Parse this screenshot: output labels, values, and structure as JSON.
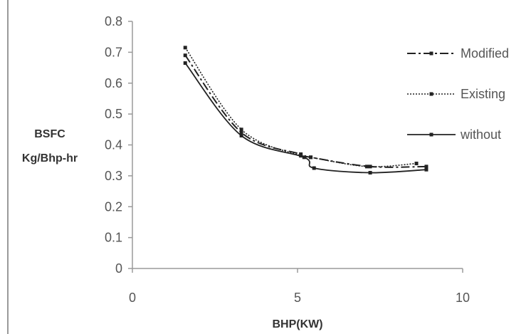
{
  "chart_data": {
    "type": "line",
    "title": "",
    "xlabel": "BHP(KW)",
    "ylabel_lines": [
      "BSFC",
      "Kg/Bhp-hr"
    ],
    "xlim": [
      0,
      10
    ],
    "ylim": [
      0,
      0.8
    ],
    "x_ticks": [
      0,
      5,
      10
    ],
    "y_ticks": [
      0,
      0.1,
      0.2,
      0.3,
      0.4,
      0.5,
      0.6,
      0.7,
      0.8
    ],
    "x_tick_labels": [
      "0",
      "5",
      "10"
    ],
    "y_tick_labels": [
      "0",
      "0.1",
      "0.2",
      "0.3",
      "0.4",
      "0.5",
      "0.6",
      "0.7",
      "0.8"
    ],
    "grid": false,
    "legend_position": "right",
    "series": [
      {
        "name": "Modified",
        "style": "dash-dot",
        "x": [
          1.6,
          3.3,
          5.1,
          5.4,
          7.2,
          8.9
        ],
        "y": [
          0.69,
          0.44,
          0.37,
          0.36,
          0.33,
          0.33
        ]
      },
      {
        "name": "Existing",
        "style": "dotted",
        "x": [
          1.6,
          3.3,
          5.1,
          5.4,
          7.1,
          8.6
        ],
        "y": [
          0.715,
          0.45,
          0.365,
          0.36,
          0.33,
          0.34
        ]
      },
      {
        "name": "without",
        "style": "solid",
        "x": [
          1.6,
          3.3,
          5.2,
          5.5,
          7.2,
          8.9
        ],
        "y": [
          0.665,
          0.43,
          0.36,
          0.325,
          0.31,
          0.32
        ]
      }
    ]
  },
  "colors": {
    "series": "#222222",
    "axis": "#9a9a9a",
    "text": "#555555"
  }
}
